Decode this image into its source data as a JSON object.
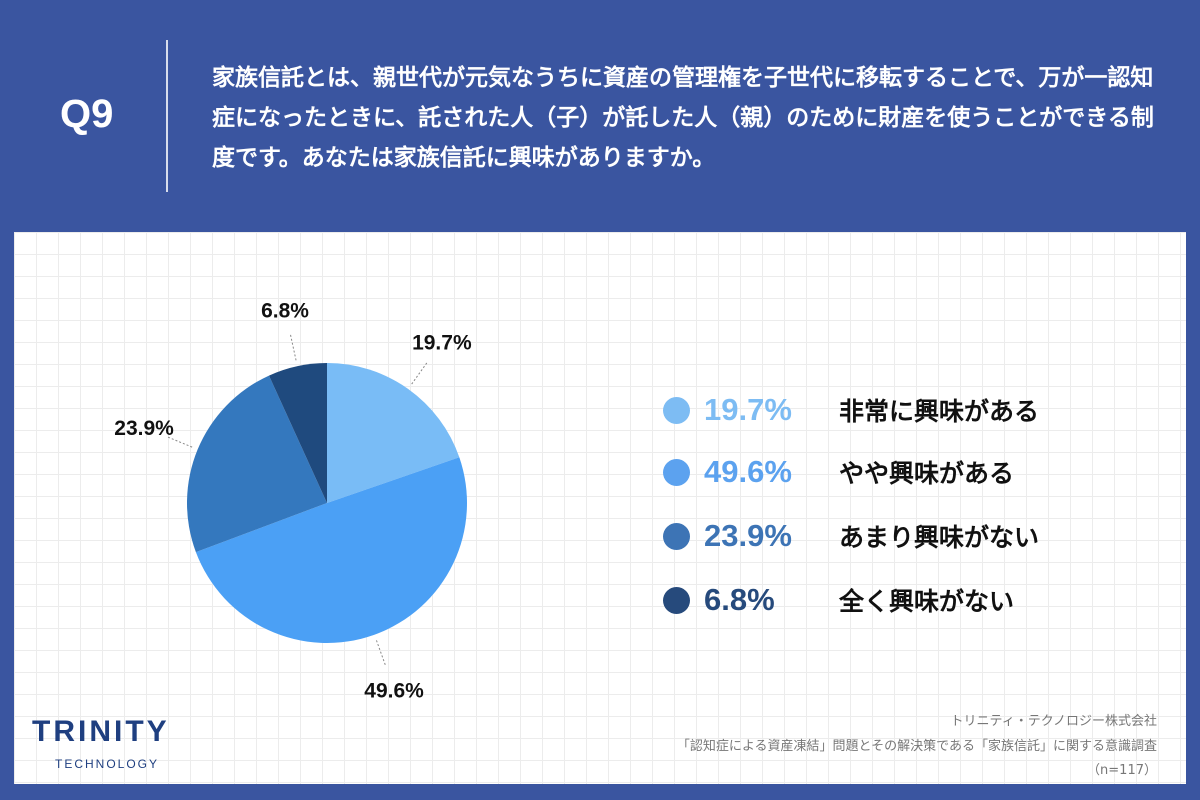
{
  "header": {
    "qnum": "Q9",
    "question": "家族信託とは、親世代が元気なうちに資産の管理権を子世代に移転することで、万が一認知症になったときに、託された人（子）が託した人（親）のために財産を使うことができる制度です。あなたは家族信託に興味がありますか。"
  },
  "chart_data": {
    "type": "pie",
    "categories": [
      "非常に興味がある",
      "やや興味がある",
      "あまり興味がない",
      "全く興味がない"
    ],
    "values": [
      19.7,
      49.6,
      23.9,
      6.8
    ],
    "labels": [
      "19.7%",
      "49.6%",
      "23.9%",
      "6.8%"
    ],
    "colors": [
      "#79bcf6",
      "#4ba0f5",
      "#3478be",
      "#1f4a7e"
    ],
    "legend_colors": [
      "#7dbcf3",
      "#5ca2ef",
      "#3d74b5",
      "#264a7c"
    ],
    "start": "top",
    "direction": "clockwise",
    "legend": "right"
  },
  "footer": {
    "logo": "TRINITY",
    "logo_sub": "TECHNOLOGY",
    "company": "トリニティ・テクノロジー株式会社",
    "survey": "「認知症による資産凍結」問題とその解決策である「家族信託」に関する意識調査",
    "n": "（n=117）"
  }
}
